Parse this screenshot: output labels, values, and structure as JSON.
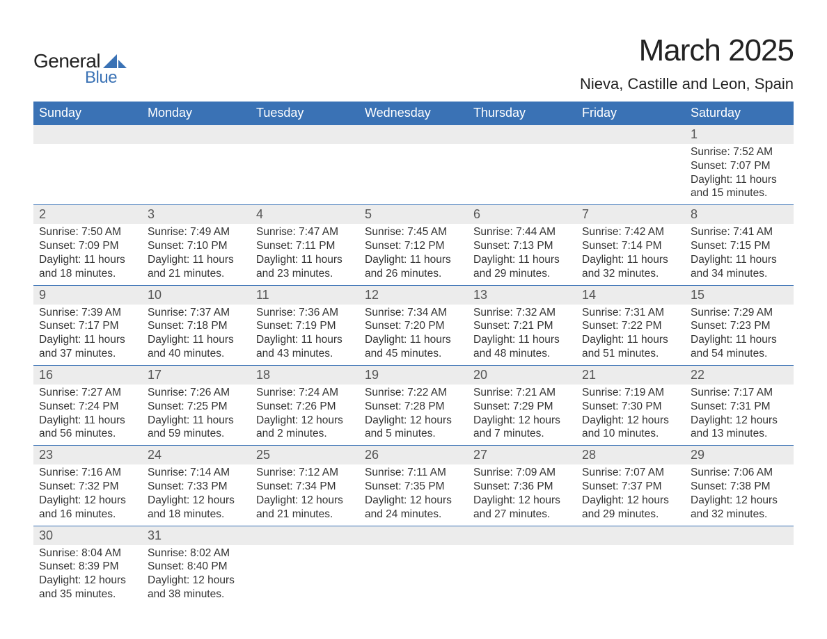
{
  "logo": {
    "text1": "General",
    "text2": "Blue",
    "accent_color": "#3a72b5"
  },
  "title": "March 2025",
  "location": "Nieva, Castille and Leon, Spain",
  "colors": {
    "header_bg": "#3a72b5",
    "header_fg": "#ffffff",
    "daynum_bg": "#ececec",
    "row_border": "#3a72b5",
    "text": "#333333",
    "title_text": "#222222"
  },
  "typography": {
    "title_fontsize": 44,
    "location_fontsize": 22,
    "header_fontsize": 18,
    "daynum_fontsize": 18,
    "body_fontsize": 15.5
  },
  "layout": {
    "columns": 7,
    "weeks": 6,
    "first_weekday": "Sunday"
  },
  "weekday_headers": [
    "Sunday",
    "Monday",
    "Tuesday",
    "Wednesday",
    "Thursday",
    "Friday",
    "Saturday"
  ],
  "labels": {
    "sunrise": "Sunrise:",
    "sunset": "Sunset:",
    "daylight": "Daylight:"
  },
  "weeks": [
    [
      null,
      null,
      null,
      null,
      null,
      null,
      {
        "day": 1,
        "sunrise": "7:52 AM",
        "sunset": "7:07 PM",
        "daylight": "11 hours and 15 minutes."
      }
    ],
    [
      {
        "day": 2,
        "sunrise": "7:50 AM",
        "sunset": "7:09 PM",
        "daylight": "11 hours and 18 minutes."
      },
      {
        "day": 3,
        "sunrise": "7:49 AM",
        "sunset": "7:10 PM",
        "daylight": "11 hours and 21 minutes."
      },
      {
        "day": 4,
        "sunrise": "7:47 AM",
        "sunset": "7:11 PM",
        "daylight": "11 hours and 23 minutes."
      },
      {
        "day": 5,
        "sunrise": "7:45 AM",
        "sunset": "7:12 PM",
        "daylight": "11 hours and 26 minutes."
      },
      {
        "day": 6,
        "sunrise": "7:44 AM",
        "sunset": "7:13 PM",
        "daylight": "11 hours and 29 minutes."
      },
      {
        "day": 7,
        "sunrise": "7:42 AM",
        "sunset": "7:14 PM",
        "daylight": "11 hours and 32 minutes."
      },
      {
        "day": 8,
        "sunrise": "7:41 AM",
        "sunset": "7:15 PM",
        "daylight": "11 hours and 34 minutes."
      }
    ],
    [
      {
        "day": 9,
        "sunrise": "7:39 AM",
        "sunset": "7:17 PM",
        "daylight": "11 hours and 37 minutes."
      },
      {
        "day": 10,
        "sunrise": "7:37 AM",
        "sunset": "7:18 PM",
        "daylight": "11 hours and 40 minutes."
      },
      {
        "day": 11,
        "sunrise": "7:36 AM",
        "sunset": "7:19 PM",
        "daylight": "11 hours and 43 minutes."
      },
      {
        "day": 12,
        "sunrise": "7:34 AM",
        "sunset": "7:20 PM",
        "daylight": "11 hours and 45 minutes."
      },
      {
        "day": 13,
        "sunrise": "7:32 AM",
        "sunset": "7:21 PM",
        "daylight": "11 hours and 48 minutes."
      },
      {
        "day": 14,
        "sunrise": "7:31 AM",
        "sunset": "7:22 PM",
        "daylight": "11 hours and 51 minutes."
      },
      {
        "day": 15,
        "sunrise": "7:29 AM",
        "sunset": "7:23 PM",
        "daylight": "11 hours and 54 minutes."
      }
    ],
    [
      {
        "day": 16,
        "sunrise": "7:27 AM",
        "sunset": "7:24 PM",
        "daylight": "11 hours and 56 minutes."
      },
      {
        "day": 17,
        "sunrise": "7:26 AM",
        "sunset": "7:25 PM",
        "daylight": "11 hours and 59 minutes."
      },
      {
        "day": 18,
        "sunrise": "7:24 AM",
        "sunset": "7:26 PM",
        "daylight": "12 hours and 2 minutes."
      },
      {
        "day": 19,
        "sunrise": "7:22 AM",
        "sunset": "7:28 PM",
        "daylight": "12 hours and 5 minutes."
      },
      {
        "day": 20,
        "sunrise": "7:21 AM",
        "sunset": "7:29 PM",
        "daylight": "12 hours and 7 minutes."
      },
      {
        "day": 21,
        "sunrise": "7:19 AM",
        "sunset": "7:30 PM",
        "daylight": "12 hours and 10 minutes."
      },
      {
        "day": 22,
        "sunrise": "7:17 AM",
        "sunset": "7:31 PM",
        "daylight": "12 hours and 13 minutes."
      }
    ],
    [
      {
        "day": 23,
        "sunrise": "7:16 AM",
        "sunset": "7:32 PM",
        "daylight": "12 hours and 16 minutes."
      },
      {
        "day": 24,
        "sunrise": "7:14 AM",
        "sunset": "7:33 PM",
        "daylight": "12 hours and 18 minutes."
      },
      {
        "day": 25,
        "sunrise": "7:12 AM",
        "sunset": "7:34 PM",
        "daylight": "12 hours and 21 minutes."
      },
      {
        "day": 26,
        "sunrise": "7:11 AM",
        "sunset": "7:35 PM",
        "daylight": "12 hours and 24 minutes."
      },
      {
        "day": 27,
        "sunrise": "7:09 AM",
        "sunset": "7:36 PM",
        "daylight": "12 hours and 27 minutes."
      },
      {
        "day": 28,
        "sunrise": "7:07 AM",
        "sunset": "7:37 PM",
        "daylight": "12 hours and 29 minutes."
      },
      {
        "day": 29,
        "sunrise": "7:06 AM",
        "sunset": "7:38 PM",
        "daylight": "12 hours and 32 minutes."
      }
    ],
    [
      {
        "day": 30,
        "sunrise": "8:04 AM",
        "sunset": "8:39 PM",
        "daylight": "12 hours and 35 minutes."
      },
      {
        "day": 31,
        "sunrise": "8:02 AM",
        "sunset": "8:40 PM",
        "daylight": "12 hours and 38 minutes."
      },
      null,
      null,
      null,
      null,
      null
    ]
  ]
}
